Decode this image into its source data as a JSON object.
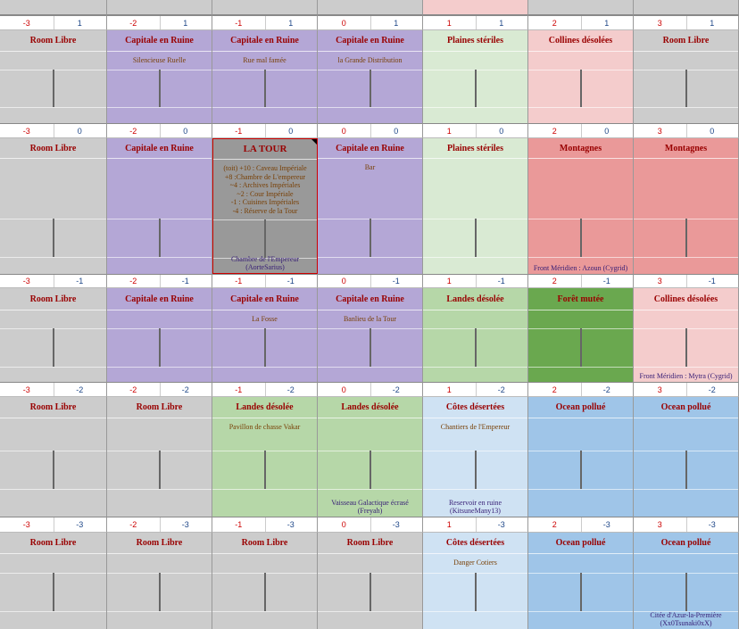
{
  "rows": [
    {
      "cells": [
        {
          "x": -3,
          "y": 1,
          "title": "Room Libre",
          "color": "#cccccc"
        },
        {
          "x": -2,
          "y": 1,
          "title": "Capitale en Ruine",
          "color": "#b4a7d6",
          "lines": [
            "Silencieuse Ruelle"
          ]
        },
        {
          "x": -1,
          "y": 1,
          "title": "Capitale en Ruine",
          "color": "#b4a7d6",
          "lines": [
            "Rue mal famée"
          ]
        },
        {
          "x": 0,
          "y": 1,
          "title": "Capitale en Ruine",
          "color": "#b4a7d6",
          "lines": [
            "la Grande Distribution"
          ]
        },
        {
          "x": 1,
          "y": 1,
          "title": "Plaines stériles",
          "color": "#d9ead3"
        },
        {
          "x": 2,
          "y": 1,
          "title": "Collines désolées",
          "color": "#f4cccc"
        },
        {
          "x": 3,
          "y": 1,
          "title": "Room Libre",
          "color": "#cccccc"
        }
      ]
    },
    {
      "cells": [
        {
          "x": -3,
          "y": 0,
          "title": "Room Libre",
          "color": "#cccccc"
        },
        {
          "x": -2,
          "y": 0,
          "title": "Capitale en Ruine",
          "color": "#b4a7d6"
        },
        {
          "x": -1,
          "y": 0,
          "title": "LA TOUR",
          "color": "#999999",
          "tower": true,
          "lines": [
            "(toit) +10 : Caveau Impériale",
            "+8 :Chambre de L'empereur",
            "~4 : Archives Impériales",
            "~2 : Cour Impériale",
            "-1 : Cuisines Impériales",
            "-4 : Réserve de la Tour"
          ],
          "bottom": "Chambre de l'Empereur (AorteSarius)"
        },
        {
          "x": 0,
          "y": 0,
          "title": "Capitale en Ruine",
          "color": "#b4a7d6",
          "lines": [
            "Bar"
          ]
        },
        {
          "x": 1,
          "y": 0,
          "title": "Plaines stériles",
          "color": "#d9ead3"
        },
        {
          "x": 2,
          "y": 0,
          "title": "Montagnes",
          "color": "#ea9999",
          "bottom": "Front Méridien : Azoun (Cygrid)"
        },
        {
          "x": 3,
          "y": 0,
          "title": "Montagnes",
          "color": "#ea9999"
        }
      ]
    },
    {
      "cells": [
        {
          "x": -3,
          "y": -1,
          "title": "Room Libre",
          "color": "#cccccc"
        },
        {
          "x": -2,
          "y": -1,
          "title": "Capitale en Ruine",
          "color": "#b4a7d6"
        },
        {
          "x": -1,
          "y": -1,
          "title": "Capitale en Ruine",
          "color": "#b4a7d6",
          "lines": [
            "La Fosse"
          ]
        },
        {
          "x": 0,
          "y": -1,
          "title": "Capitale en Ruine",
          "color": "#b4a7d6",
          "lines": [
            "Banlieu de la Tour"
          ]
        },
        {
          "x": 1,
          "y": -1,
          "title": "Landes désolée",
          "color": "#b6d7a8"
        },
        {
          "x": 2,
          "y": -1,
          "title": "Forêt mutée",
          "color": "#6aa84f"
        },
        {
          "x": 3,
          "y": -1,
          "title": "Collines désolées",
          "color": "#f4cccc",
          "bottom": "Front Méridien : Mytra (Cygrid)"
        }
      ]
    },
    {
      "cells": [
        {
          "x": -3,
          "y": -2,
          "title": "Room Libre",
          "color": "#cccccc"
        },
        {
          "x": -2,
          "y": -2,
          "title": "Room Libre",
          "color": "#cccccc"
        },
        {
          "x": -1,
          "y": -2,
          "title": "Landes désolée",
          "color": "#b6d7a8",
          "lines": [
            "Pavillon de chasse Vakar"
          ]
        },
        {
          "x": 0,
          "y": -2,
          "title": "Landes désolée",
          "color": "#b6d7a8",
          "bottom": "Vaisseau Galactique écrasé (Freyah)"
        },
        {
          "x": 1,
          "y": -2,
          "title": "Côtes désertées",
          "color": "#cfe2f3",
          "lines": [
            "Chantiers de l'Empereur"
          ],
          "bottom": "Reservoir en ruine (KitsuneMany13)"
        },
        {
          "x": 2,
          "y": -2,
          "title": "Ocean pollué",
          "color": "#9fc5e8"
        },
        {
          "x": 3,
          "y": -2,
          "title": "Ocean pollué",
          "color": "#9fc5e8"
        }
      ]
    },
    {
      "cells": [
        {
          "x": -3,
          "y": -3,
          "title": "Room Libre",
          "color": "#cccccc"
        },
        {
          "x": -2,
          "y": -3,
          "title": "Room Libre",
          "color": "#cccccc"
        },
        {
          "x": -1,
          "y": -3,
          "title": "Room Libre",
          "color": "#cccccc"
        },
        {
          "x": 0,
          "y": -3,
          "title": "Room Libre",
          "color": "#cccccc"
        },
        {
          "x": 1,
          "y": -3,
          "title": "Côtes désertées",
          "color": "#cfe2f3",
          "lines": [
            "Danger Cotiers"
          ]
        },
        {
          "x": 2,
          "y": -3,
          "title": "Ocean pollué",
          "color": "#9fc5e8"
        },
        {
          "x": 3,
          "y": -3,
          "title": "Ocean pollué",
          "color": "#9fc5e8",
          "bottom": "Citée d'Azur-la-Première (Xx0Tsunaki0xX)"
        }
      ]
    }
  ]
}
